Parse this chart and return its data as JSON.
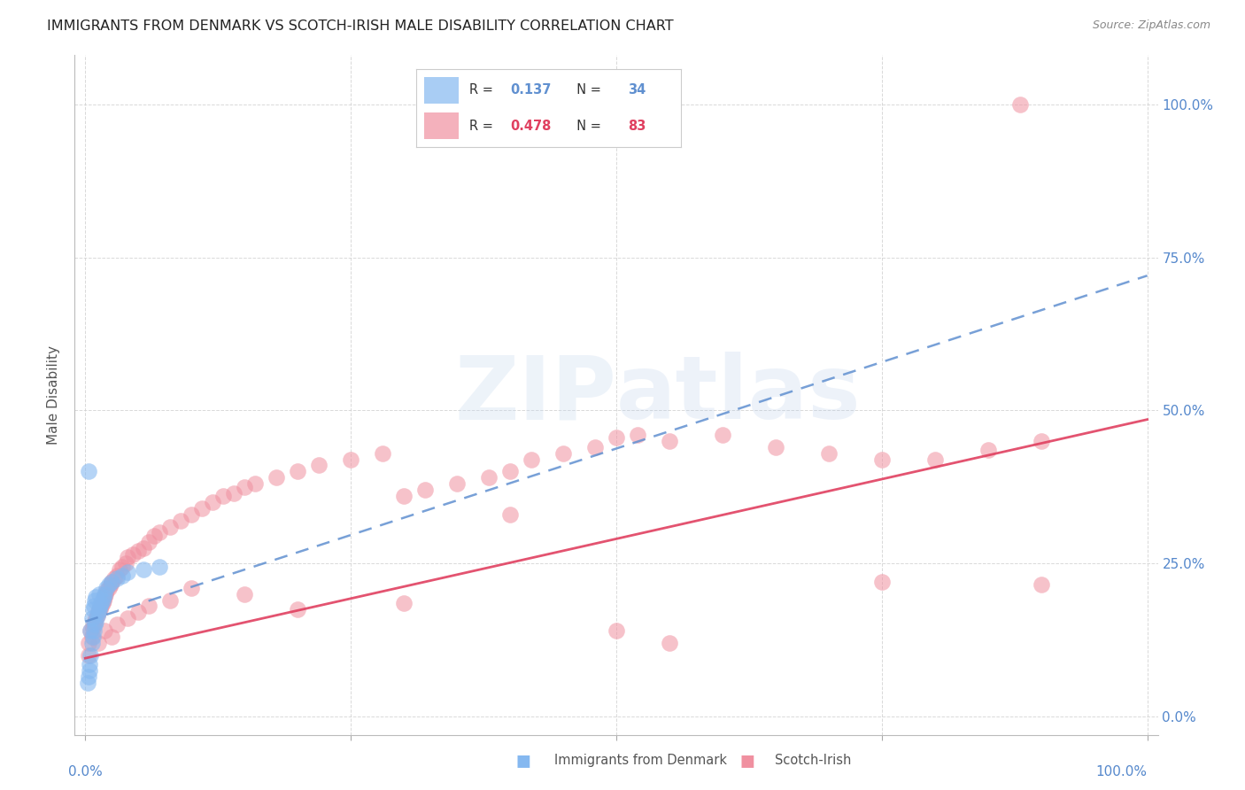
{
  "title": "IMMIGRANTS FROM DENMARK VS SCOTCH-IRISH MALE DISABILITY CORRELATION CHART",
  "source": "Source: ZipAtlas.com",
  "ylabel": "Male Disability",
  "ytick_values": [
    0.0,
    0.25,
    0.5,
    0.75,
    1.0
  ],
  "xtick_values": [
    0.0,
    0.25,
    0.5,
    0.75,
    1.0
  ],
  "xlim": [
    -0.01,
    1.01
  ],
  "ylim": [
    -0.03,
    1.08
  ],
  "background_color": "#ffffff",
  "grid_color": "#d0d0d0",
  "denmark_color": "#85b8f0",
  "scotch_color": "#f090a0",
  "denmark_line_color": "#6090d0",
  "scotch_line_color": "#e04060",
  "denmark_R": 0.137,
  "denmark_N": 34,
  "scotch_R": 0.478,
  "scotch_N": 83,
  "denmark_x": [
    0.002,
    0.003,
    0.004,
    0.004,
    0.005,
    0.005,
    0.006,
    0.006,
    0.007,
    0.007,
    0.008,
    0.008,
    0.009,
    0.009,
    0.01,
    0.01,
    0.011,
    0.012,
    0.013,
    0.013,
    0.014,
    0.015,
    0.016,
    0.017,
    0.018,
    0.02,
    0.022,
    0.025,
    0.03,
    0.035,
    0.04,
    0.055,
    0.07,
    0.003
  ],
  "denmark_y": [
    0.055,
    0.065,
    0.075,
    0.085,
    0.1,
    0.14,
    0.12,
    0.16,
    0.13,
    0.175,
    0.14,
    0.18,
    0.15,
    0.19,
    0.155,
    0.195,
    0.165,
    0.17,
    0.175,
    0.2,
    0.18,
    0.185,
    0.19,
    0.195,
    0.2,
    0.21,
    0.215,
    0.22,
    0.225,
    0.23,
    0.235,
    0.24,
    0.245,
    0.4
  ],
  "scotch_x": [
    0.003,
    0.005,
    0.006,
    0.007,
    0.008,
    0.009,
    0.01,
    0.011,
    0.012,
    0.013,
    0.014,
    0.015,
    0.016,
    0.017,
    0.018,
    0.019,
    0.02,
    0.022,
    0.024,
    0.025,
    0.027,
    0.03,
    0.032,
    0.035,
    0.038,
    0.04,
    0.045,
    0.05,
    0.055,
    0.06,
    0.065,
    0.07,
    0.08,
    0.09,
    0.1,
    0.11,
    0.12,
    0.13,
    0.14,
    0.15,
    0.16,
    0.18,
    0.2,
    0.22,
    0.25,
    0.28,
    0.3,
    0.32,
    0.35,
    0.38,
    0.4,
    0.42,
    0.45,
    0.48,
    0.5,
    0.52,
    0.55,
    0.6,
    0.65,
    0.7,
    0.75,
    0.8,
    0.85,
    0.9,
    0.003,
    0.012,
    0.018,
    0.025,
    0.03,
    0.04,
    0.05,
    0.06,
    0.08,
    0.1,
    0.15,
    0.2,
    0.3,
    0.5,
    0.75,
    0.9,
    0.4,
    0.55,
    0.88
  ],
  "scotch_y": [
    0.12,
    0.14,
    0.13,
    0.145,
    0.15,
    0.155,
    0.16,
    0.165,
    0.17,
    0.175,
    0.175,
    0.18,
    0.185,
    0.19,
    0.195,
    0.2,
    0.205,
    0.21,
    0.215,
    0.22,
    0.225,
    0.23,
    0.24,
    0.245,
    0.25,
    0.26,
    0.265,
    0.27,
    0.275,
    0.285,
    0.295,
    0.3,
    0.31,
    0.32,
    0.33,
    0.34,
    0.35,
    0.36,
    0.365,
    0.375,
    0.38,
    0.39,
    0.4,
    0.41,
    0.42,
    0.43,
    0.36,
    0.37,
    0.38,
    0.39,
    0.4,
    0.42,
    0.43,
    0.44,
    0.455,
    0.46,
    0.45,
    0.46,
    0.44,
    0.43,
    0.42,
    0.42,
    0.435,
    0.45,
    0.1,
    0.12,
    0.14,
    0.13,
    0.15,
    0.16,
    0.17,
    0.18,
    0.19,
    0.21,
    0.2,
    0.175,
    0.185,
    0.14,
    0.22,
    0.215,
    0.33,
    0.12,
    1.0
  ],
  "dk_line_x0": 0.0,
  "dk_line_x1": 1.0,
  "dk_line_y0": 0.155,
  "dk_line_y1": 0.72,
  "si_line_x0": 0.0,
  "si_line_x1": 1.0,
  "si_line_y0": 0.095,
  "si_line_y1": 0.485
}
